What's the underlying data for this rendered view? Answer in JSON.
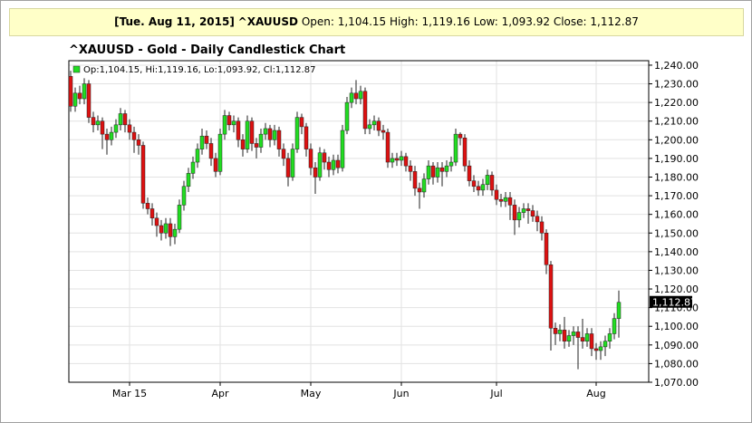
{
  "chart_data": {
    "type": "candlestick",
    "info_bar": {
      "date": "[Tue. Aug 11, 2015]",
      "symbol": "^XAUUSD",
      "fields": [
        {
          "label": "Open:",
          "value": "1,104.15"
        },
        {
          "label": "High:",
          "value": "1,119.16"
        },
        {
          "label": "Low:",
          "value": "1,093.92"
        },
        {
          "label": "Close:",
          "value": "1,112.87"
        }
      ]
    },
    "title": "^XAUUSD - Gold - Daily Candlestick Chart",
    "legend": "Op:1,104.15, Hi:1,119.16, Lo:1,093.92, Cl:1,112.87",
    "up_color": "#22dd22",
    "down_color": "#dd1111",
    "grid": true,
    "last_price": {
      "value": 1112.87,
      "label": "1,112.87"
    },
    "categories": [
      null,
      null,
      null,
      null,
      null,
      null,
      null,
      null,
      null,
      null,
      null,
      null,
      null,
      "Mar 15",
      null,
      null,
      null,
      null,
      null,
      null,
      null,
      null,
      null,
      null,
      null,
      null,
      null,
      null,
      null,
      null,
      null,
      null,
      null,
      "Apr",
      null,
      null,
      null,
      null,
      null,
      null,
      null,
      null,
      null,
      null,
      null,
      null,
      null,
      null,
      null,
      null,
      null,
      null,
      null,
      "May",
      null,
      null,
      null,
      null,
      null,
      null,
      null,
      null,
      null,
      null,
      null,
      null,
      null,
      null,
      null,
      null,
      null,
      null,
      null,
      "Jun",
      null,
      null,
      null,
      null,
      null,
      null,
      null,
      null,
      null,
      null,
      null,
      null,
      null,
      null,
      null,
      null,
      null,
      null,
      null,
      null,
      "Jul",
      null,
      null,
      null,
      null,
      null,
      null,
      null,
      null,
      null,
      null,
      null,
      null,
      null,
      null,
      null,
      null,
      null,
      null,
      null,
      null,
      null,
      "Aug",
      null,
      null,
      null,
      null,
      null
    ],
    "open": [
      1234,
      1218,
      1225,
      1222,
      1230,
      1212,
      1208,
      1210,
      1203,
      1200,
      1204,
      1208,
      1214,
      1208,
      1204,
      1200,
      1197,
      1166,
      1163,
      1158,
      1154,
      1150,
      1155,
      1148,
      1152,
      1165,
      1175,
      1182,
      1188,
      1195,
      1202,
      1198,
      1190,
      1183,
      1203,
      1213,
      1208,
      1210,
      1200,
      1195,
      1210,
      1198,
      1196,
      1203,
      1206,
      1200,
      1205,
      1195,
      1190,
      1180,
      1195,
      1212,
      1207,
      1195,
      1185,
      1180,
      1193,
      1188,
      1184,
      1189,
      1185,
      1205,
      1220,
      1225,
      1222,
      1226,
      1206,
      1208,
      1210,
      1205,
      1204,
      1188,
      1190,
      1189,
      1191,
      1186,
      1183,
      1174,
      1172,
      1179,
      1186,
      1180,
      1185,
      1183,
      1186,
      1188,
      1203,
      1201,
      1186,
      1178,
      1175,
      1173,
      1176,
      1181,
      1173,
      1168,
      1167,
      1169,
      1165,
      1157,
      1161,
      1163,
      1162,
      1159,
      1156,
      1150,
      1133,
      1099,
      1096,
      1098,
      1092,
      1095,
      1097,
      1094,
      1092,
      1096,
      1088,
      1087,
      1089,
      1092,
      1096,
      1104.15
    ],
    "high": [
      1237,
      1228,
      1229,
      1233,
      1232,
      1215,
      1213,
      1212,
      1206,
      1207,
      1211,
      1217,
      1216,
      1211,
      1207,
      1203,
      1199,
      1169,
      1166,
      1161,
      1157,
      1158,
      1158,
      1155,
      1168,
      1178,
      1185,
      1191,
      1198,
      1206,
      1205,
      1201,
      1193,
      1206,
      1216,
      1215,
      1213,
      1212,
      1203,
      1213,
      1212,
      1201,
      1206,
      1209,
      1208,
      1208,
      1207,
      1198,
      1193,
      1198,
      1215,
      1214,
      1209,
      1198,
      1188,
      1196,
      1195,
      1191,
      1192,
      1192,
      1208,
      1223,
      1228,
      1232,
      1229,
      1228,
      1211,
      1213,
      1212,
      1208,
      1206,
      1193,
      1193,
      1194,
      1193,
      1189,
      1186,
      1177,
      1182,
      1189,
      1188,
      1188,
      1188,
      1189,
      1191,
      1206,
      1204,
      1203,
      1189,
      1181,
      1178,
      1179,
      1184,
      1183,
      1176,
      1171,
      1172,
      1172,
      1168,
      1164,
      1166,
      1166,
      1165,
      1162,
      1159,
      1152,
      1135,
      1102,
      1101,
      1105,
      1098,
      1100,
      1100,
      1104,
      1099,
      1099,
      1091,
      1092,
      1095,
      1099,
      1107,
      1119.16
    ],
    "low": [
      1215,
      1215,
      1219,
      1219,
      1209,
      1204,
      1205,
      1195,
      1192,
      1197,
      1201,
      1205,
      1204,
      1200,
      1193,
      1192,
      1163,
      1160,
      1154,
      1148,
      1146,
      1147,
      1143,
      1144,
      1150,
      1162,
      1172,
      1179,
      1185,
      1192,
      1195,
      1186,
      1180,
      1181,
      1200,
      1205,
      1204,
      1196,
      1191,
      1193,
      1194,
      1190,
      1193,
      1200,
      1196,
      1197,
      1191,
      1186,
      1175,
      1178,
      1193,
      1203,
      1191,
      1181,
      1171,
      1178,
      1184,
      1180,
      1181,
      1182,
      1183,
      1203,
      1217,
      1219,
      1219,
      1203,
      1203,
      1205,
      1202,
      1200,
      1185,
      1185,
      1186,
      1186,
      1183,
      1178,
      1170,
      1163,
      1169,
      1176,
      1176,
      1177,
      1175,
      1180,
      1183,
      1186,
      1197,
      1183,
      1175,
      1172,
      1170,
      1170,
      1173,
      1170,
      1165,
      1164,
      1164,
      1157,
      1149,
      1153,
      1158,
      1155,
      1156,
      1151,
      1146,
      1128,
      1087,
      1090,
      1092,
      1088,
      1089,
      1090,
      1077,
      1088,
      1089,
      1084,
      1082,
      1082,
      1084,
      1088,
      1093,
      1093.92
    ],
    "close": [
      1218,
      1225,
      1222,
      1230,
      1212,
      1208,
      1210,
      1203,
      1200,
      1204,
      1208,
      1214,
      1208,
      1204,
      1200,
      1197,
      1166,
      1163,
      1158,
      1154,
      1150,
      1155,
      1148,
      1152,
      1165,
      1175,
      1182,
      1188,
      1195,
      1202,
      1198,
      1190,
      1183,
      1203,
      1213,
      1208,
      1210,
      1200,
      1195,
      1210,
      1198,
      1196,
      1203,
      1206,
      1200,
      1205,
      1195,
      1190,
      1180,
      1195,
      1212,
      1207,
      1195,
      1185,
      1180,
      1193,
      1188,
      1184,
      1189,
      1185,
      1205,
      1220,
      1225,
      1222,
      1226,
      1206,
      1208,
      1210,
      1205,
      1204,
      1188,
      1190,
      1189,
      1191,
      1186,
      1183,
      1174,
      1172,
      1179,
      1186,
      1180,
      1185,
      1183,
      1186,
      1188,
      1203,
      1201,
      1186,
      1178,
      1175,
      1173,
      1176,
      1181,
      1173,
      1168,
      1167,
      1169,
      1165,
      1157,
      1161,
      1163,
      1162,
      1159,
      1156,
      1150,
      1133,
      1099,
      1096,
      1098,
      1092,
      1095,
      1097,
      1094,
      1092,
      1096,
      1088,
      1087,
      1089,
      1092,
      1096,
      1104.15,
      1112.87
    ],
    "ylim": [
      1070,
      1242.4
    ],
    "yticks": [
      {
        "value": 1070,
        "label": "1,070.00"
      },
      {
        "value": 1080,
        "label": "1,080.00"
      },
      {
        "value": 1090,
        "label": "1,090.00"
      },
      {
        "value": 1100,
        "label": "1,100.00"
      },
      {
        "value": 1110,
        "label": "1,110.00"
      },
      {
        "value": 1120,
        "label": "1,120.00"
      },
      {
        "value": 1130,
        "label": "1,130.00"
      },
      {
        "value": 1140,
        "label": "1,140.00"
      },
      {
        "value": 1150,
        "label": "1,150.00"
      },
      {
        "value": 1160,
        "label": "1,160.00"
      },
      {
        "value": 1170,
        "label": "1,170.00"
      },
      {
        "value": 1180,
        "label": "1,180.00"
      },
      {
        "value": 1190,
        "label": "1,190.00"
      },
      {
        "value": 1200,
        "label": "1,200.00"
      },
      {
        "value": 1210,
        "label": "1,210.00"
      },
      {
        "value": 1220,
        "label": "1,220.00"
      },
      {
        "value": 1230,
        "label": "1,230.00"
      },
      {
        "value": 1240,
        "label": "1,240.00"
      }
    ]
  }
}
